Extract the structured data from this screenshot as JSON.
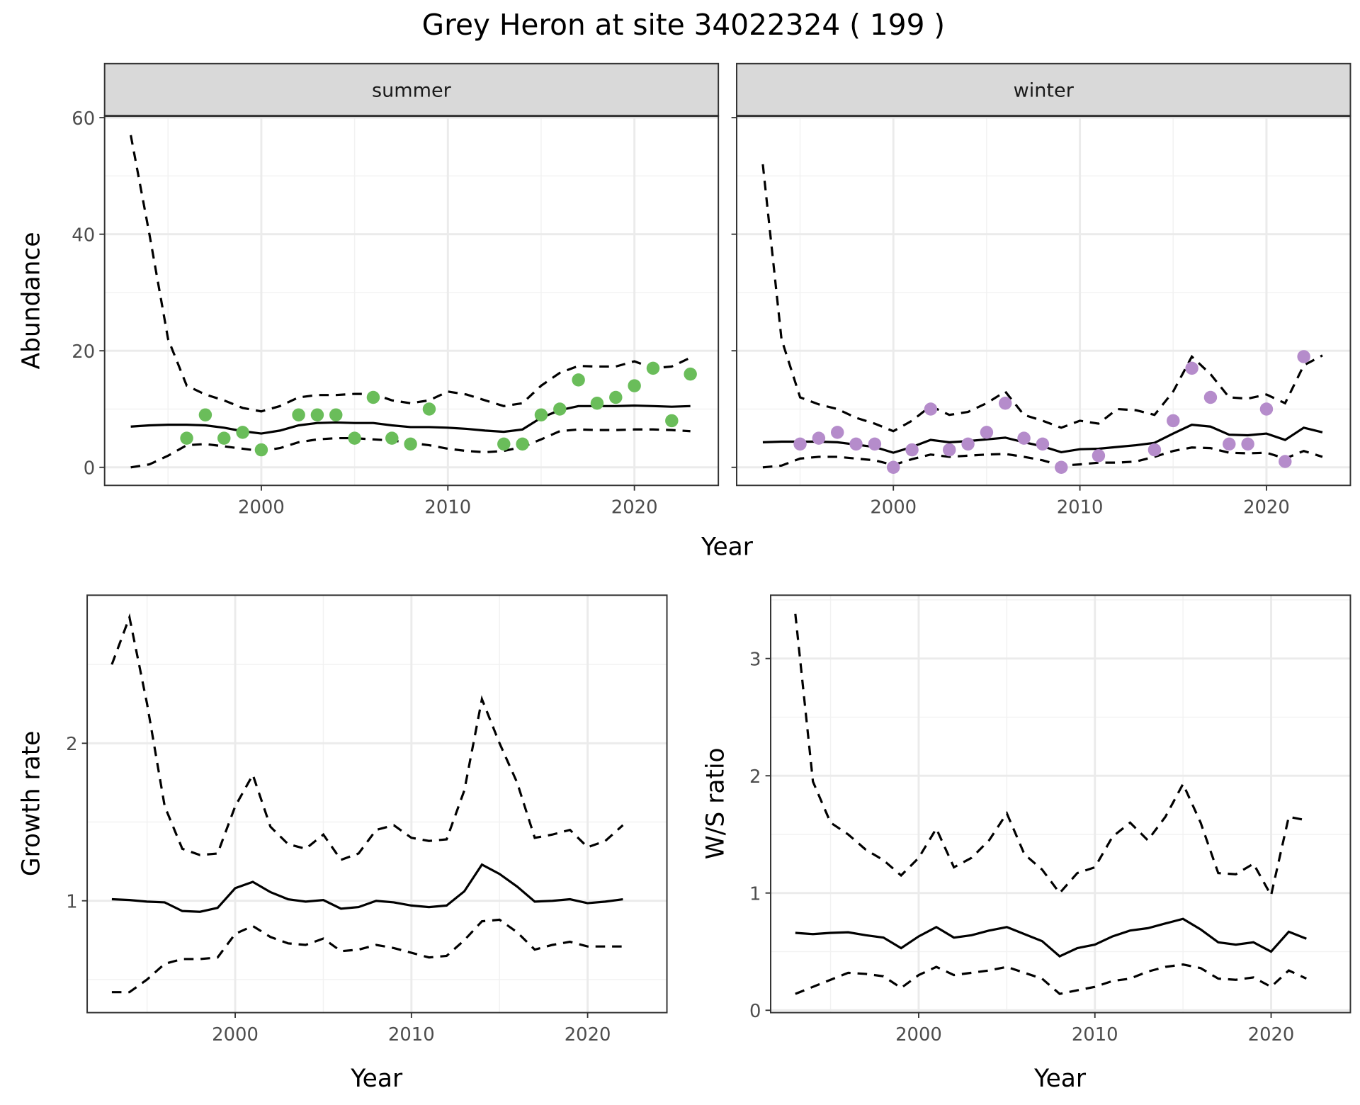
{
  "title": "Grey Heron at site 34022324 ( 199 )",
  "chart_data": [
    {
      "type": "line+scatter",
      "facet": "summer",
      "xlabel": "Year",
      "ylabel": "Abundance",
      "xlim": [
        1991.6,
        2024.5
      ],
      "ylim": [
        -3.1,
        60.3
      ],
      "xticks": [
        2000,
        2010,
        2020
      ],
      "yticks": [
        0,
        20,
        40,
        60
      ],
      "grid": true,
      "point_color": "#6abd5a",
      "years": [
        1993,
        1994,
        1995,
        1996,
        1997,
        1998,
        1999,
        2000,
        2001,
        2002,
        2003,
        2004,
        2005,
        2006,
        2007,
        2008,
        2009,
        2010,
        2011,
        2012,
        2013,
        2014,
        2015,
        2016,
        2017,
        2018,
        2019,
        2020,
        2021,
        2022,
        2023
      ],
      "mean": [
        7.0,
        7.2,
        7.3,
        7.3,
        7.2,
        6.8,
        6.2,
        5.8,
        6.3,
        7.2,
        7.6,
        7.7,
        7.6,
        7.6,
        7.2,
        6.9,
        6.9,
        6.8,
        6.6,
        6.3,
        6.1,
        6.5,
        8.5,
        9.8,
        10.5,
        10.5,
        10.5,
        10.6,
        10.5,
        10.4,
        10.5
      ],
      "upper": [
        57,
        40,
        22,
        14,
        12.5,
        11.5,
        10.2,
        9.6,
        10.5,
        12,
        12.4,
        12.4,
        12.6,
        12.6,
        11.5,
        11,
        11.5,
        13,
        12.5,
        11.5,
        10.5,
        11,
        14,
        16.2,
        17.4,
        17.3,
        17.3,
        18.2,
        17,
        17.3,
        18.8
      ],
      "lower": [
        0,
        0.5,
        2,
        3.8,
        4,
        3.6,
        3.2,
        2.8,
        3.3,
        4.3,
        4.8,
        5,
        5,
        4.8,
        4.6,
        4.2,
        3.8,
        3.2,
        2.8,
        2.6,
        2.8,
        3.5,
        4.8,
        6.2,
        6.5,
        6.4,
        6.4,
        6.5,
        6.5,
        6.4,
        6.2
      ],
      "points": {
        "x": [
          1996,
          1997,
          1998,
          1999,
          2000,
          2002,
          2003,
          2004,
          2005,
          2006,
          2007,
          2008,
          2009,
          2013,
          2014,
          2015,
          2016,
          2017,
          2018,
          2019,
          2020,
          2021,
          2022,
          2023
        ],
        "y": [
          5,
          9,
          5,
          6,
          3,
          9,
          9,
          9,
          5,
          12,
          5,
          4,
          10,
          4,
          4,
          9,
          10,
          15,
          11,
          12,
          14,
          17,
          8,
          16
        ]
      }
    },
    {
      "type": "line+scatter",
      "facet": "winter",
      "xlabel": "Year",
      "ylabel": "Abundance",
      "xlim": [
        1991.6,
        2024.5
      ],
      "ylim": [
        -3.1,
        60.3
      ],
      "xticks": [
        2000,
        2010,
        2020
      ],
      "yticks": [
        0,
        20,
        40,
        60
      ],
      "grid": true,
      "point_color": "#b58ccb",
      "years": [
        1993,
        1994,
        1995,
        1996,
        1997,
        1998,
        1999,
        2000,
        2001,
        2002,
        2003,
        2004,
        2005,
        2006,
        2007,
        2008,
        2009,
        2010,
        2011,
        2012,
        2013,
        2014,
        2015,
        2016,
        2017,
        2018,
        2019,
        2020,
        2021,
        2022,
        2023
      ],
      "mean": [
        4.3,
        4.4,
        4.4,
        4.4,
        4.3,
        3.9,
        3.5,
        2.5,
        3.5,
        4.7,
        4.3,
        4.5,
        4.8,
        5.1,
        4.3,
        3.6,
        2.6,
        3.1,
        3.2,
        3.5,
        3.8,
        4.2,
        5.8,
        7.3,
        7.0,
        5.6,
        5.5,
        5.8,
        4.7,
        6.8,
        6.0
      ],
      "upper": [
        52,
        22,
        12,
        10.8,
        10,
        8.5,
        7.5,
        6.2,
        8,
        10.5,
        9,
        9.5,
        11,
        13,
        9,
        8,
        6.8,
        8,
        7.5,
        10,
        9.8,
        9,
        13,
        19,
        16,
        12,
        11.8,
        12.5,
        11,
        17.5,
        19.2
      ],
      "lower": [
        0,
        0.3,
        1.5,
        1.8,
        1.8,
        1.5,
        1.2,
        0.4,
        1.4,
        2.2,
        1.8,
        2,
        2.2,
        2.3,
        1.8,
        1.2,
        0.3,
        0.5,
        0.8,
        0.8,
        1,
        1.8,
        2.8,
        3.4,
        3.3,
        2.5,
        2.4,
        2.5,
        1.5,
        2.8,
        1.8
      ],
      "points": {
        "x": [
          1995,
          1996,
          1997,
          1998,
          1999,
          2000,
          2001,
          2002,
          2003,
          2004,
          2005,
          2006,
          2007,
          2008,
          2009,
          2011,
          2014,
          2015,
          2016,
          2017,
          2018,
          2019,
          2020,
          2021,
          2022
        ],
        "y": [
          4,
          5,
          6,
          4,
          4,
          0,
          3,
          10,
          3,
          4,
          6,
          11,
          5,
          4,
          0,
          2,
          3,
          8,
          17,
          12,
          4,
          4,
          10,
          1,
          19
        ]
      }
    },
    {
      "type": "line",
      "xlabel": "Year",
      "ylabel": "Growth rate",
      "xlim": [
        1991.6,
        2024.5
      ],
      "ylim": [
        0.29,
        2.94
      ],
      "xticks": [
        2000,
        2010,
        2020
      ],
      "yticks": [
        1,
        2
      ],
      "grid": true,
      "years": [
        1993,
        1994,
        1995,
        1996,
        1997,
        1998,
        1999,
        2000,
        2001,
        2002,
        2003,
        2004,
        2005,
        2006,
        2007,
        2008,
        2009,
        2010,
        2011,
        2012,
        2013,
        2014,
        2015,
        2016,
        2017,
        2018,
        2019,
        2020,
        2021,
        2022
      ],
      "mean": [
        1.01,
        1.005,
        0.995,
        0.99,
        0.935,
        0.93,
        0.955,
        1.08,
        1.12,
        1.055,
        1.01,
        0.995,
        1.005,
        0.95,
        0.96,
        1.0,
        0.99,
        0.97,
        0.96,
        0.97,
        1.06,
        1.23,
        1.17,
        1.09,
        0.995,
        1.0,
        1.01,
        0.985,
        0.995,
        1.01
      ],
      "upper": [
        2.5,
        2.8,
        2.25,
        1.6,
        1.33,
        1.29,
        1.3,
        1.6,
        1.8,
        1.47,
        1.36,
        1.33,
        1.42,
        1.26,
        1.3,
        1.45,
        1.48,
        1.4,
        1.38,
        1.39,
        1.7,
        2.28,
        2.0,
        1.75,
        1.4,
        1.42,
        1.45,
        1.34,
        1.38,
        1.48
      ],
      "lower": [
        0.42,
        0.42,
        0.5,
        0.6,
        0.63,
        0.63,
        0.64,
        0.79,
        0.84,
        0.77,
        0.73,
        0.72,
        0.76,
        0.68,
        0.69,
        0.72,
        0.7,
        0.67,
        0.64,
        0.65,
        0.75,
        0.87,
        0.88,
        0.8,
        0.69,
        0.72,
        0.74,
        0.71,
        0.71,
        0.71
      ]
    },
    {
      "type": "line",
      "xlabel": "Year",
      "ylabel": "W/S ratio",
      "xlim": [
        1991.6,
        2024.5
      ],
      "ylim": [
        -0.02,
        3.54
      ],
      "xticks": [
        2000,
        2010,
        2020
      ],
      "yticks": [
        0,
        1,
        2,
        3
      ],
      "grid": true,
      "years": [
        1993,
        1994,
        1995,
        1996,
        1997,
        1998,
        1999,
        2000,
        2001,
        2002,
        2003,
        2004,
        2005,
        2006,
        2007,
        2008,
        2009,
        2010,
        2011,
        2012,
        2013,
        2014,
        2015,
        2016,
        2017,
        2018,
        2019,
        2020,
        2021,
        2022
      ],
      "mean": [
        0.66,
        0.65,
        0.66,
        0.665,
        0.64,
        0.62,
        0.53,
        0.63,
        0.71,
        0.62,
        0.64,
        0.68,
        0.71,
        0.65,
        0.59,
        0.46,
        0.53,
        0.56,
        0.63,
        0.68,
        0.7,
        0.74,
        0.78,
        0.69,
        0.58,
        0.56,
        0.58,
        0.5,
        0.67,
        0.61
      ],
      "upper": [
        3.38,
        1.95,
        1.6,
        1.5,
        1.37,
        1.28,
        1.15,
        1.3,
        1.55,
        1.22,
        1.3,
        1.45,
        1.68,
        1.33,
        1.2,
        1.0,
        1.17,
        1.22,
        1.48,
        1.6,
        1.45,
        1.65,
        1.93,
        1.6,
        1.17,
        1.16,
        1.25,
        0.98,
        1.65,
        1.62
      ],
      "lower": [
        0.14,
        0.2,
        0.26,
        0.32,
        0.31,
        0.29,
        0.19,
        0.3,
        0.37,
        0.3,
        0.32,
        0.34,
        0.37,
        0.32,
        0.27,
        0.14,
        0.17,
        0.2,
        0.25,
        0.27,
        0.33,
        0.37,
        0.39,
        0.36,
        0.27,
        0.26,
        0.28,
        0.2,
        0.34,
        0.27
      ]
    }
  ]
}
